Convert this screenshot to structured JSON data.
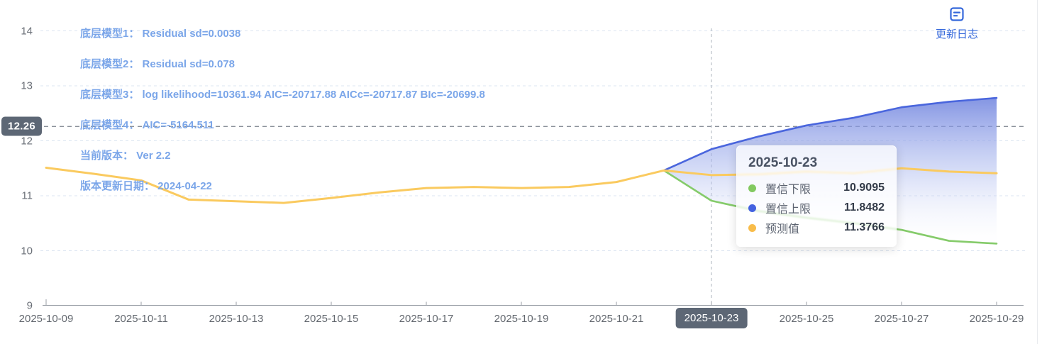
{
  "update_log": {
    "label": "更新日志"
  },
  "annotations": [
    "底层模型1： Residual sd=0.0038",
    "底层模型2： Residual sd=0.078",
    "底层模型3： log likelihood=10361.94 AIC=-20717.88 AICc=-20717.87 BIc=-20699.8",
    "底层模型4： AIC=-5164.511",
    "当前版本： Ver 2.2",
    "版本更新日期： 2024-04-22"
  ],
  "tooltip": {
    "title": "2025-10-23",
    "rows": [
      {
        "label": "置信下限",
        "value": "10.9095",
        "color": "#82C960"
      },
      {
        "label": "置信上限",
        "value": "11.8482",
        "color": "#4462E0"
      },
      {
        "label": "预测值",
        "value": "11.3766",
        "color": "#F8BC4A"
      }
    ]
  },
  "colors": {
    "axis_pointer_badge": "#5D6775",
    "annotation_text": "#7BA6E9",
    "update_log_blue": "#3568DB",
    "grid_line": "#DBE4F1",
    "marker_line": "#8B919A",
    "axis_line": "#989EA6"
  },
  "chart_data": {
    "type": "line",
    "title": "",
    "xlabel": "",
    "ylabel": "",
    "x": [
      "2025-10-09",
      "2025-10-10",
      "2025-10-11",
      "2025-10-12",
      "2025-10-13",
      "2025-10-14",
      "2025-10-15",
      "2025-10-16",
      "2025-10-17",
      "2025-10-18",
      "2025-10-19",
      "2025-10-20",
      "2025-10-21",
      "2025-10-22",
      "2025-10-23",
      "2025-10-24",
      "2025-10-25",
      "2025-10-26",
      "2025-10-27",
      "2025-10-28",
      "2025-10-29"
    ],
    "xtick_every": 2,
    "series": [
      {
        "name": "预测值",
        "color": "#FACA5F",
        "values": [
          11.51,
          11.4,
          11.28,
          10.93,
          10.9,
          10.87,
          10.96,
          11.06,
          11.14,
          11.16,
          11.14,
          11.16,
          11.25,
          11.46,
          11.3766,
          11.39,
          11.44,
          11.41,
          11.5,
          11.44,
          11.41
        ]
      },
      {
        "name": "置信上限",
        "color": "#4A66DD",
        "values": [
          null,
          null,
          null,
          null,
          null,
          null,
          null,
          null,
          null,
          null,
          null,
          null,
          null,
          11.46,
          11.8482,
          12.08,
          12.28,
          12.42,
          12.61,
          12.71,
          12.78
        ]
      },
      {
        "name": "置信下限",
        "color": "#85CB6A",
        "values": [
          null,
          null,
          null,
          null,
          null,
          null,
          null,
          null,
          null,
          null,
          null,
          null,
          null,
          11.46,
          10.9095,
          10.72,
          10.6,
          10.5,
          10.38,
          10.18,
          10.13
        ]
      }
    ],
    "band": {
      "upper": "置信上限",
      "lower": "置信下限",
      "fill_top": "#6E82DE",
      "fill_bottom": "#FFFFFF"
    },
    "ylim": [
      9,
      14
    ],
    "yticks": [
      9,
      10,
      11,
      12,
      13,
      14
    ],
    "grid": true,
    "legend_position": "none",
    "marker_line_y": 12.26,
    "marker_line_label": "12.26",
    "marked_x": "2025-10-23"
  }
}
